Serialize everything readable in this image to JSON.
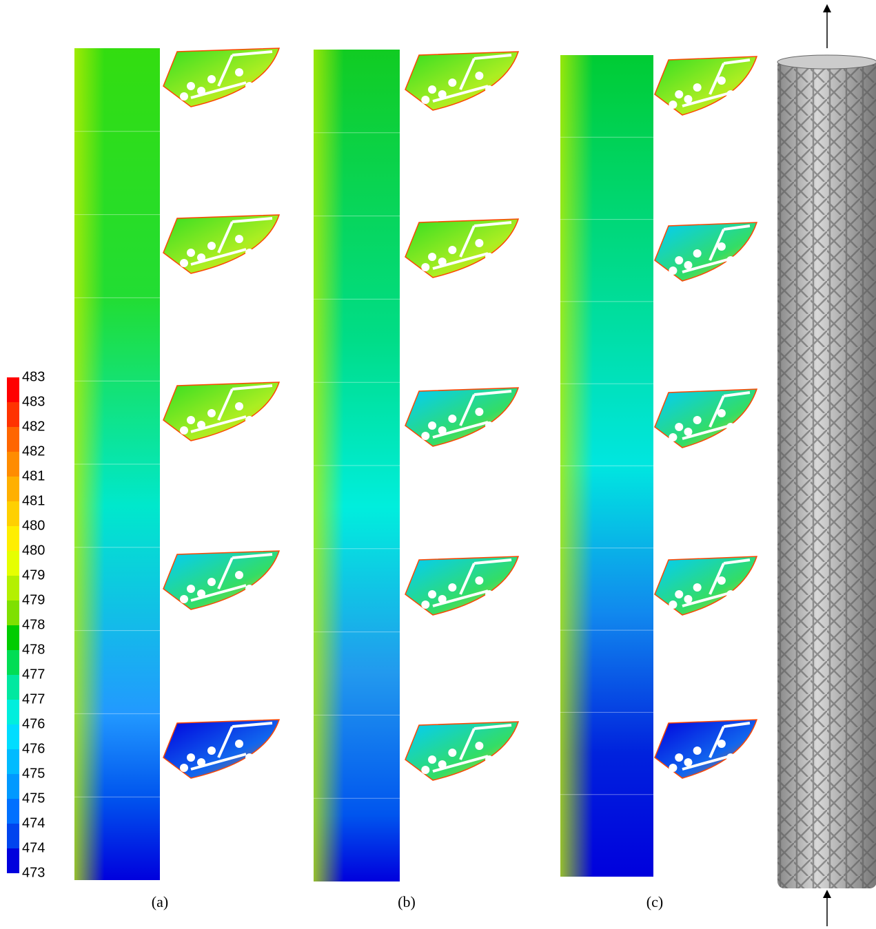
{
  "colorbar": {
    "labels": [
      "483",
      "483",
      "482",
      "482",
      "481",
      "481",
      "480",
      "480",
      "479",
      "479",
      "478",
      "478",
      "477",
      "477",
      "476",
      "476",
      "475",
      "475",
      "474",
      "474",
      "473"
    ],
    "colors": [
      "#ff0000",
      "#ff3300",
      "#ff6600",
      "#ff8c00",
      "#ffb000",
      "#ffd000",
      "#ffee00",
      "#e6ff00",
      "#b4f000",
      "#7fe000",
      "#00cc00",
      "#00dd55",
      "#00e8a0",
      "#00eedd",
      "#00ddff",
      "#00bbff",
      "#0099ff",
      "#0070ff",
      "#0044ee",
      "#0000dd"
    ]
  },
  "panels": [
    {
      "label": "(a)"
    },
    {
      "label": "(b)"
    },
    {
      "label": "(c)"
    }
  ]
}
